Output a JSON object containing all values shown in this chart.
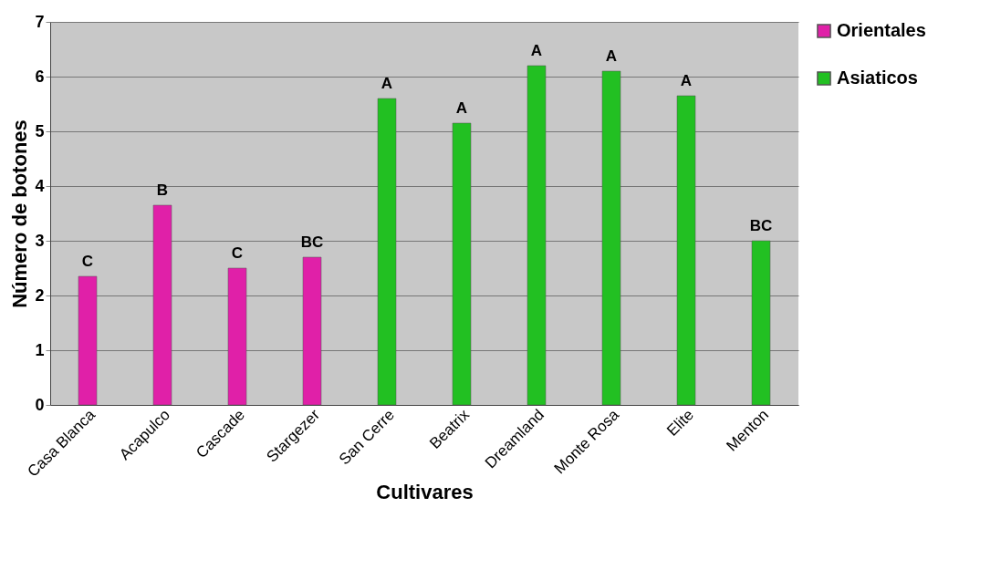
{
  "chart_data": {
    "type": "bar",
    "xlabel": "Cultivares",
    "ylabel": "Número de botones",
    "categories": [
      "Casa Blanca",
      "Acapulco",
      "Cascade",
      "Stargezer",
      "San Cerre",
      "Beatrix",
      "Dreamland",
      "Monte Rosa",
      "Elite",
      "Menton"
    ],
    "series": [
      {
        "name": "Orientales",
        "color": "#e020a8",
        "values": [
          2.35,
          3.65,
          2.5,
          2.7,
          null,
          null,
          null,
          null,
          null,
          null
        ]
      },
      {
        "name": "Asiaticos",
        "color": "#22c022",
        "values": [
          null,
          null,
          null,
          null,
          5.6,
          5.15,
          6.2,
          6.1,
          5.65,
          3.0
        ]
      }
    ],
    "ylim": [
      0,
      7
    ],
    "yticks": [
      0,
      1,
      2,
      3,
      4,
      5,
      6,
      7
    ],
    "grid": "y",
    "legend": "right",
    "annotations": [
      {
        "text": "C",
        "x": "Casa Blanca",
        "y": 2.35
      },
      {
        "text": "B",
        "x": "Acapulco",
        "y": 3.65
      },
      {
        "text": "C",
        "x": "Cascade",
        "y": 2.5
      },
      {
        "text": "BC",
        "x": "Stargezer",
        "y": 2.7
      },
      {
        "text": "A",
        "x": "San Cerre",
        "y": 5.6
      },
      {
        "text": "A",
        "x": "Beatrix",
        "y": 5.15
      },
      {
        "text": "A",
        "x": "Dreamland",
        "y": 6.2
      },
      {
        "text": "A",
        "x": "Monte Rosa",
        "y": 6.1
      },
      {
        "text": "A",
        "x": "Elite",
        "y": 5.65
      },
      {
        "text": "BC",
        "x": "Menton",
        "y": 3.0
      }
    ]
  }
}
